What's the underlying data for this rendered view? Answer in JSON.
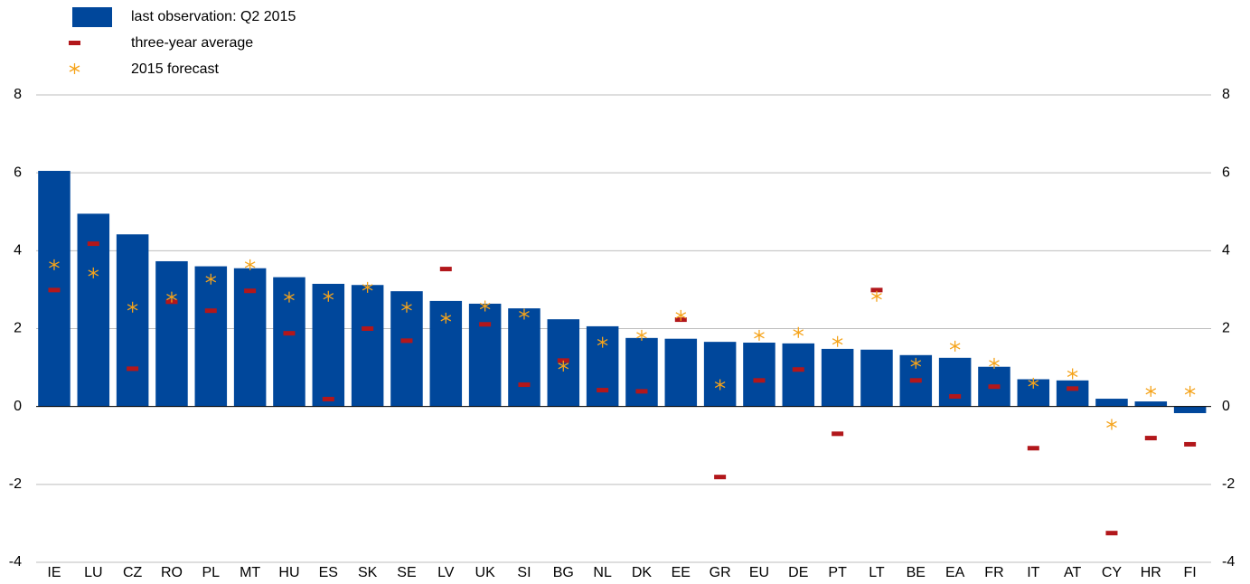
{
  "chart_data": {
    "type": "bar",
    "categories": [
      "IE",
      "LU",
      "CZ",
      "RO",
      "PL",
      "MT",
      "HU",
      "ES",
      "SK",
      "SE",
      "LV",
      "UK",
      "SI",
      "BG",
      "NL",
      "DK",
      "EE",
      "GR",
      "EU",
      "DE",
      "PT",
      "LT",
      "BE",
      "EA",
      "FR",
      "IT",
      "AT",
      "CY",
      "HR",
      "FI"
    ],
    "series": [
      {
        "name": "last observation: Q2 2015",
        "color": "#00479b",
        "values": [
          6.05,
          4.95,
          4.42,
          3.73,
          3.6,
          3.55,
          3.32,
          3.15,
          3.12,
          2.96,
          2.71,
          2.64,
          2.52,
          2.24,
          2.06,
          1.76,
          1.74,
          1.66,
          1.64,
          1.62,
          1.48,
          1.46,
          1.32,
          1.25,
          1.02,
          0.7,
          0.67,
          0.2,
          0.13,
          -0.17
        ]
      },
      {
        "name": "three-year average",
        "color": "#b2171b",
        "values": [
          2.99,
          4.18,
          0.97,
          2.69,
          2.46,
          2.97,
          1.88,
          0.19,
          2.0,
          1.69,
          3.53,
          2.11,
          0.56,
          1.18,
          0.42,
          0.39,
          2.23,
          -1.81,
          0.67,
          0.95,
          -0.7,
          2.99,
          0.67,
          0.26,
          0.51,
          -1.07,
          0.46,
          -3.25,
          -0.81,
          -0.97
        ]
      },
      {
        "name": "2015 forecast",
        "color": "#f5a31a",
        "values": [
          3.64,
          3.43,
          2.55,
          2.81,
          3.27,
          3.64,
          2.81,
          2.83,
          3.06,
          2.55,
          2.27,
          2.58,
          2.37,
          1.04,
          1.65,
          1.83,
          2.34,
          0.56,
          1.83,
          1.9,
          1.67,
          2.83,
          1.11,
          1.55,
          1.11,
          0.6,
          0.84,
          -0.46,
          0.39,
          0.39
        ]
      }
    ],
    "ylim": [
      -4,
      8
    ],
    "yticks": [
      -4,
      -2,
      0,
      2,
      4,
      6,
      8
    ],
    "grid": true
  }
}
